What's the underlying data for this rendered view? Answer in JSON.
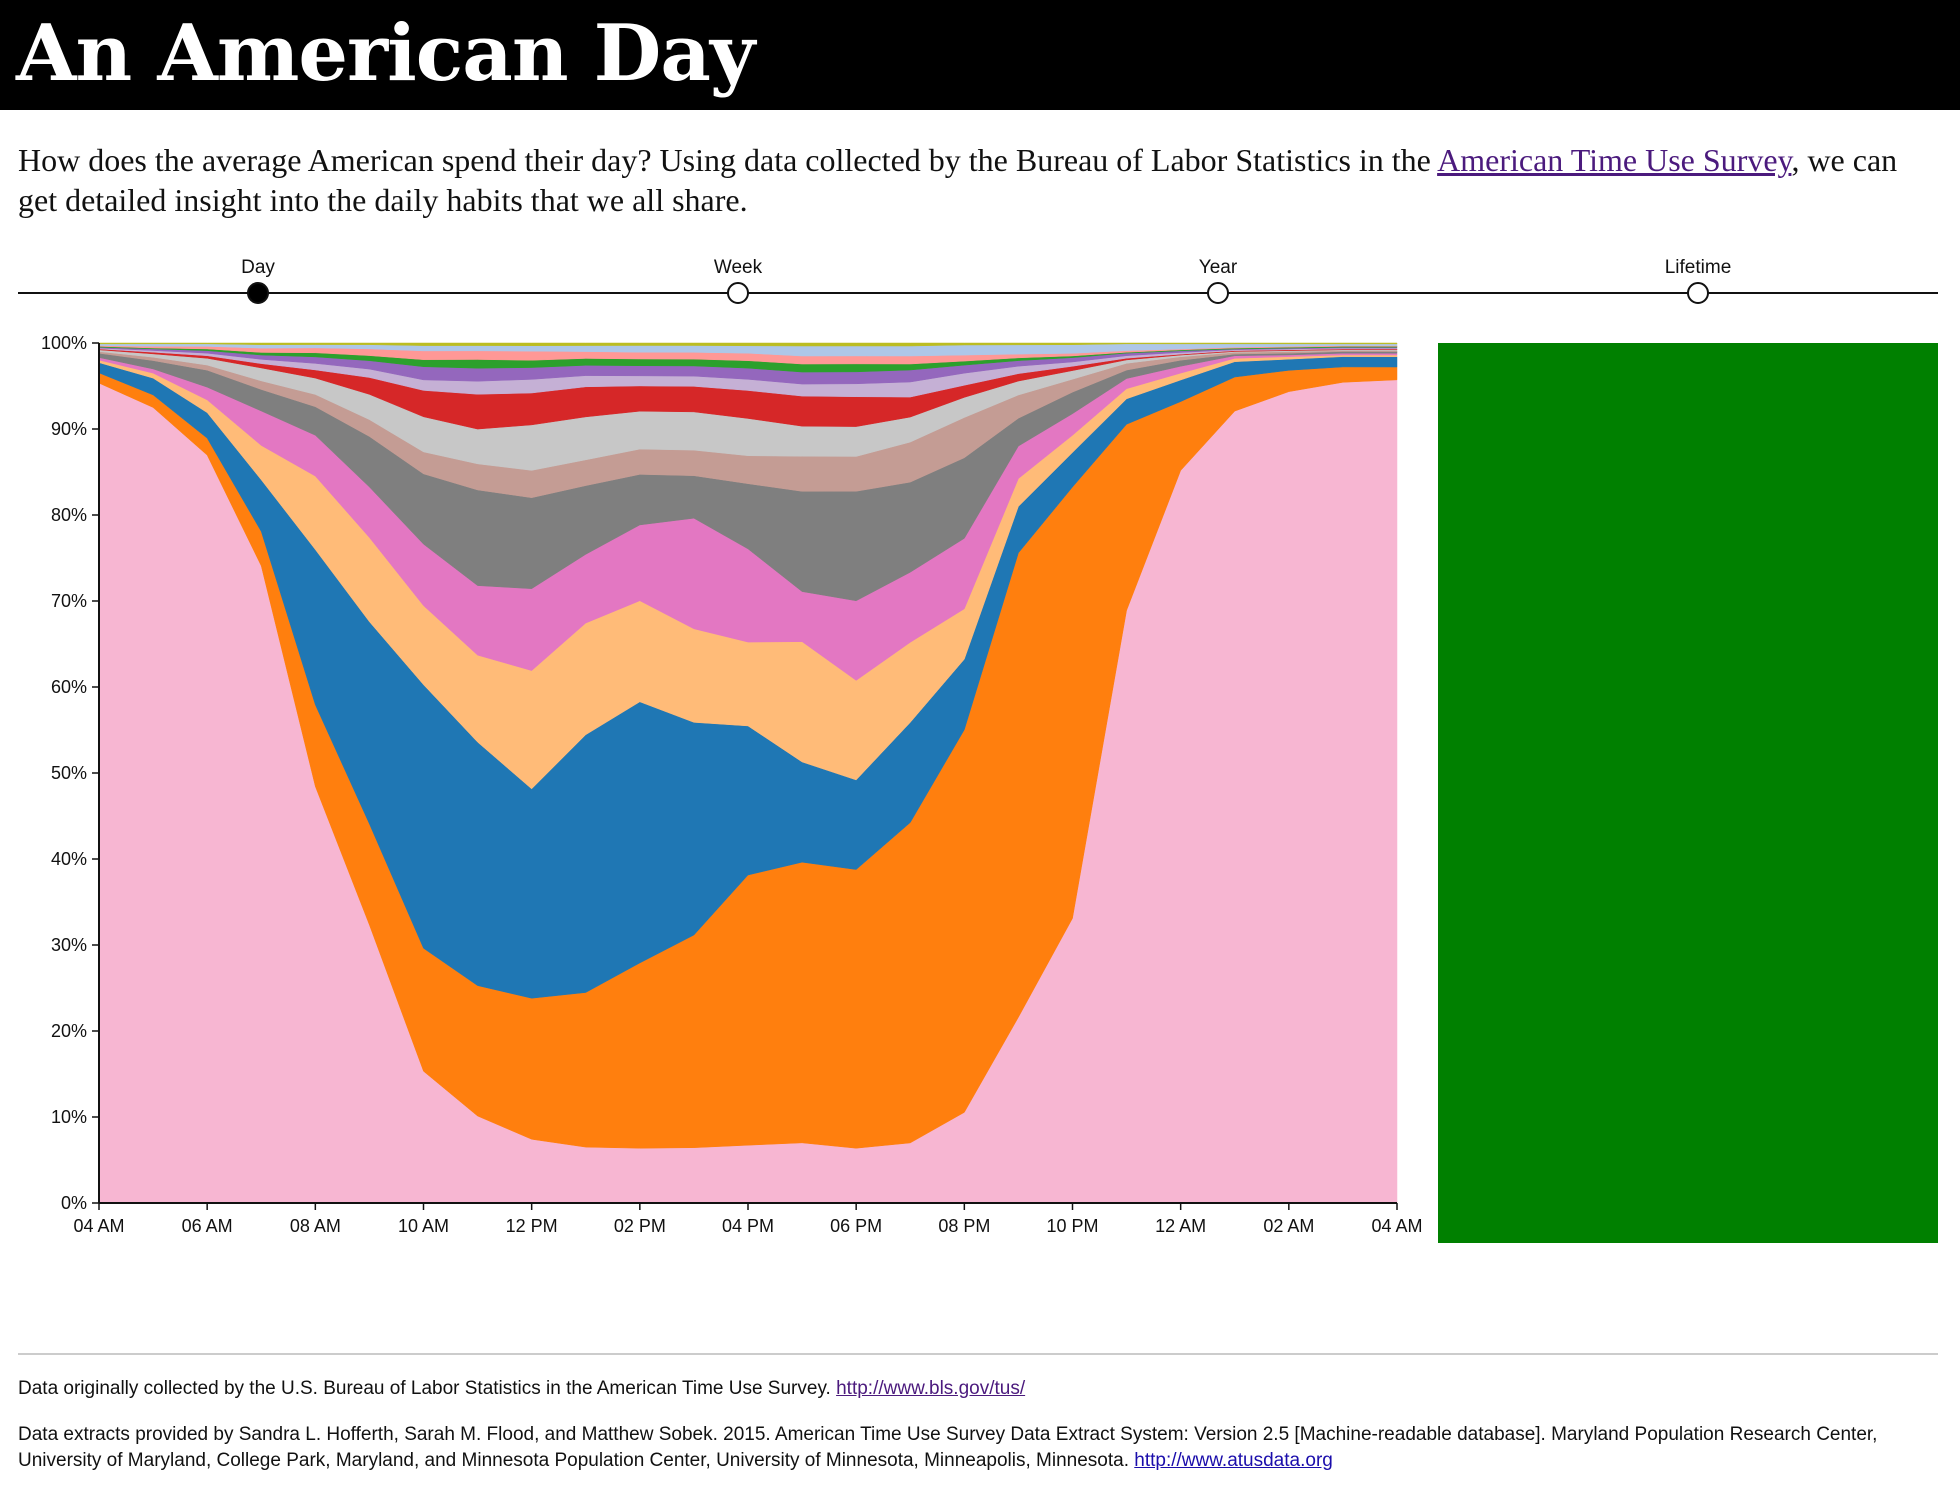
{
  "header": {
    "title": "An American Day"
  },
  "intro": {
    "text_before": "How does the average American spend their day? Using data collected by the Bureau of Labor Statistics in the ",
    "link_text": "American Time Use Survey",
    "text_after": ", we can get detailed insight into the daily habits that we all share."
  },
  "timeline": {
    "stops": [
      {
        "label": "Day",
        "selected": true
      },
      {
        "label": "Week",
        "selected": false
      },
      {
        "label": "Year",
        "selected": false
      },
      {
        "label": "Lifetime",
        "selected": false
      }
    ]
  },
  "side_panel": {
    "color": "#008000"
  },
  "footer": {
    "line1_text": "Data originally collected by the U.S. Bureau of Labor Statistics in the American Time Use Survey. ",
    "line1_link": "http://www.bls.gov/tus/",
    "line2_text": "Data extracts provided by Sandra L. Hofferth, Sarah M. Flood, and Matthew Sobek. 2015. American Time Use Survey Data Extract System: Version 2.5 [Machine-readable database]. Maryland Population Research Center, University of Maryland, College Park, Maryland, and Minnesota Population Center, University of Minnesota, Minneapolis, Minnesota. ",
    "line2_link": "http://www.atusdata.org"
  },
  "chart_data": {
    "type": "area",
    "stacked": "normalized",
    "title": "",
    "xlabel": "",
    "ylabel": "",
    "x": [
      "04 AM",
      "05 AM",
      "06 AM",
      "07 AM",
      "08 AM",
      "09 AM",
      "10 AM",
      "11 AM",
      "12 PM",
      "01 PM",
      "02 PM",
      "03 PM",
      "04 PM",
      "05 PM",
      "06 PM",
      "07 PM",
      "08 PM",
      "09 PM",
      "10 PM",
      "11 PM",
      "12 AM",
      "01 AM",
      "02 AM",
      "03 AM",
      "04 AM"
    ],
    "x_tick_labels": [
      "04 AM",
      "06 AM",
      "08 AM",
      "10 AM",
      "12 PM",
      "02 PM",
      "04 PM",
      "06 PM",
      "08 PM",
      "10 PM",
      "12 AM",
      "02 AM",
      "04 AM"
    ],
    "y_tick_labels": [
      "0%",
      "10%",
      "20%",
      "30%",
      "40%",
      "50%",
      "60%",
      "70%",
      "80%",
      "90%",
      "100%"
    ],
    "ylim": [
      0,
      100
    ],
    "grid": false,
    "legend": "none",
    "series": [
      {
        "color": "#f7b6d2",
        "values": [
          96,
          95,
          88,
          74,
          51,
          33,
          15,
          10,
          7,
          6.5,
          6.5,
          6.5,
          6.2,
          6,
          5.5,
          6,
          9,
          20,
          33,
          70,
          85,
          93,
          95,
          96,
          96
        ]
      },
      {
        "color": "#ff7f0e",
        "values": [
          1.2,
          1.5,
          2,
          4,
          10,
          12,
          14,
          15,
          15.5,
          18,
          22,
          25,
          29,
          28,
          28,
          32,
          38,
          50,
          50,
          22,
          8,
          4,
          2.5,
          1.8,
          1.5
        ]
      },
      {
        "color": "#1f77b4",
        "values": [
          1.2,
          2,
          3,
          6,
          19,
          24,
          30,
          28,
          23,
          30,
          31,
          25,
          16,
          10,
          9,
          10,
          7,
          5,
          4,
          3,
          2.5,
          1.8,
          1.3,
          1.2,
          1.2
        ]
      },
      {
        "color": "#ffbb78",
        "values": [
          0.3,
          0.6,
          1.5,
          4,
          9,
          10,
          9,
          10,
          13,
          13,
          12,
          11,
          9,
          12,
          10,
          8,
          5,
          3,
          2,
          1.2,
          0.8,
          0.4,
          0.3,
          0.2,
          0.2
        ]
      },
      {
        "color": "#e377c2",
        "values": [
          0.3,
          0.5,
          1.5,
          4,
          5,
          6,
          7,
          8,
          9,
          8,
          9,
          13,
          10,
          5,
          8,
          7,
          7,
          3.5,
          2.5,
          1.2,
          0.8,
          0.3,
          0.2,
          0.2,
          0.2
        ]
      },
      {
        "color": "#7f7f7f",
        "values": [
          0.5,
          1,
          2,
          2.5,
          3.5,
          6,
          8,
          11,
          10,
          8,
          6,
          5,
          7,
          10,
          11,
          9,
          8,
          3,
          2.5,
          1,
          0.7,
          0.2,
          0.2,
          0.2,
          0.2
        ]
      },
      {
        "color": "#c49c94",
        "values": [
          0.2,
          0.4,
          0.6,
          1,
          1.5,
          2,
          2.5,
          3,
          3,
          3,
          3,
          3,
          3,
          3.5,
          3.5,
          4,
          4,
          2.5,
          1.5,
          0.8,
          0.4,
          0.2,
          0.2,
          0.1,
          0.1
        ]
      },
      {
        "color": "#c7c7c7",
        "values": [
          0.2,
          0.4,
          0.8,
          1.5,
          2,
          3,
          4,
          4,
          5,
          5,
          4.5,
          4.5,
          4,
          3,
          3,
          2.5,
          2,
          1.5,
          1,
          0.4,
          0.2,
          0.1,
          0.1,
          0.1,
          0.1
        ]
      },
      {
        "color": "#d62728",
        "values": [
          0.1,
          0.2,
          0.3,
          0.5,
          1,
          2,
          3,
          4,
          3.5,
          3.5,
          3,
          3,
          3,
          3,
          3,
          2,
          1.2,
          0.8,
          0.5,
          0.2,
          0.1,
          0.1,
          0.1,
          0.1,
          0.1
        ]
      },
      {
        "color": "#c5b0d5",
        "values": [
          0.1,
          0.2,
          0.3,
          0.5,
          0.8,
          1,
          1.2,
          1.5,
          1.5,
          1.3,
          1.2,
          1.2,
          1.2,
          1.2,
          1.3,
          1.5,
          1.2,
          0.8,
          0.5,
          0.3,
          0.2,
          0.1,
          0.1,
          0.1,
          0.1
        ]
      },
      {
        "color": "#9467bd",
        "values": [
          0.1,
          0.2,
          0.3,
          0.5,
          0.8,
          1,
          1.5,
          1.5,
          1.3,
          1.2,
          1.2,
          1.2,
          1.2,
          1.2,
          1.2,
          1.2,
          0.8,
          0.6,
          0.5,
          0.3,
          0.2,
          0.1,
          0.1,
          0.1,
          0.1
        ]
      },
      {
        "color": "#2ca02c",
        "values": [
          0.1,
          0.1,
          0.2,
          0.3,
          0.5,
          0.6,
          0.8,
          1,
          0.8,
          0.8,
          0.8,
          0.8,
          0.8,
          0.8,
          0.8,
          0.6,
          0.4,
          0.3,
          0.2,
          0.1,
          0.1,
          0.1,
          0.1,
          0.1,
          0.1
        ]
      },
      {
        "color": "#ff9896",
        "values": [
          0.1,
          0.2,
          0.3,
          0.5,
          0.6,
          0.8,
          1,
          1,
          1,
          0.8,
          0.8,
          0.8,
          0.8,
          0.8,
          0.8,
          0.8,
          0.6,
          0.4,
          0.3,
          0.2,
          0.1,
          0.1,
          0.1,
          0.1,
          0.1
        ]
      },
      {
        "color": "#aec7e8",
        "values": [
          0.2,
          0.3,
          0.3,
          0.4,
          0.4,
          0.5,
          0.6,
          0.6,
          0.6,
          0.7,
          0.8,
          0.8,
          0.8,
          1,
          1,
          1,
          1,
          1,
          1,
          0.8,
          0.6,
          0.4,
          0.3,
          0.2,
          0.2
        ]
      },
      {
        "color": "#bcbd22",
        "values": [
          0.1,
          0.1,
          0.1,
          0.2,
          0.2,
          0.2,
          0.3,
          0.3,
          0.3,
          0.3,
          0.3,
          0.3,
          0.3,
          0.3,
          0.3,
          0.3,
          0.2,
          0.2,
          0.2,
          0.1,
          0.1,
          0.1,
          0.1,
          0.1,
          0.1
        ]
      }
    ]
  }
}
